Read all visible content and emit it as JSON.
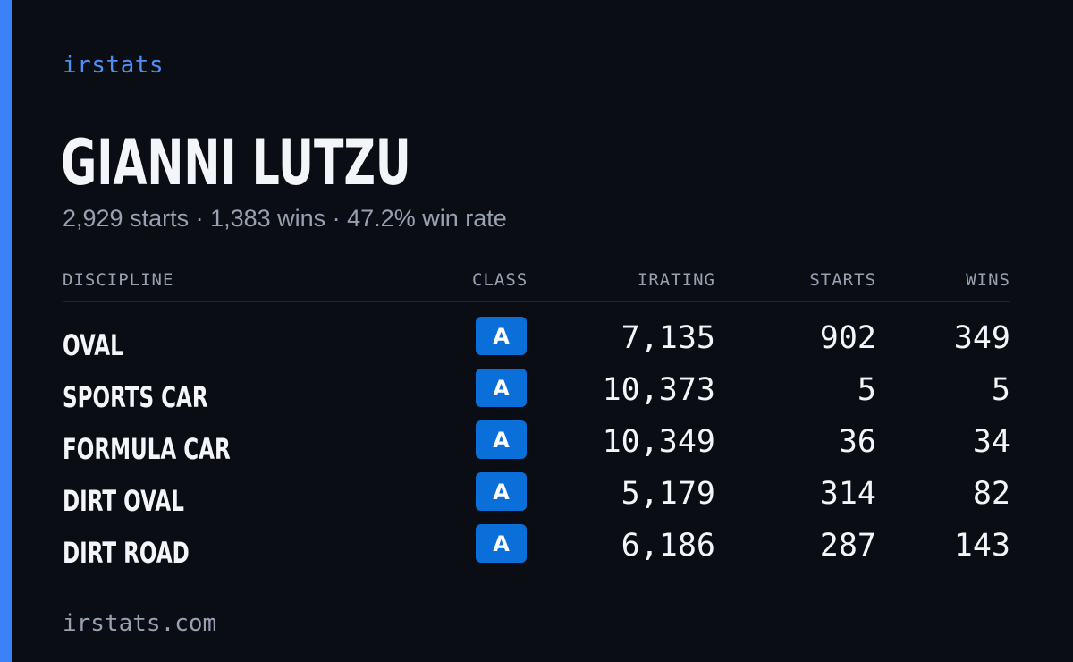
{
  "brand": "irstats",
  "driver": {
    "name": "GIANNI LUTZU",
    "summary": "2,929 starts · 1,383 wins · 47.2% win rate"
  },
  "table": {
    "headers": {
      "discipline": "DISCIPLINE",
      "class": "CLASS",
      "irating": "IRATING",
      "starts": "STARTS",
      "wins": "WINS"
    },
    "rows": [
      {
        "discipline": "OVAL",
        "class": "A",
        "irating": "7,135",
        "starts": "902",
        "wins": "349"
      },
      {
        "discipline": "SPORTS CAR",
        "class": "A",
        "irating": "10,373",
        "starts": "5",
        "wins": "5"
      },
      {
        "discipline": "FORMULA CAR",
        "class": "A",
        "irating": "10,349",
        "starts": "36",
        "wins": "34"
      },
      {
        "discipline": "DIRT OVAL",
        "class": "A",
        "irating": "5,179",
        "starts": "314",
        "wins": "82"
      },
      {
        "discipline": "DIRT ROAD",
        "class": "A",
        "irating": "6,186",
        "starts": "287",
        "wins": "143"
      }
    ]
  },
  "footer": "irstats.com",
  "colors": {
    "background": "#0a0d14",
    "accent": "#3b82f6",
    "class_badge": "#0a6fd9",
    "muted_text": "#98a0b2"
  }
}
